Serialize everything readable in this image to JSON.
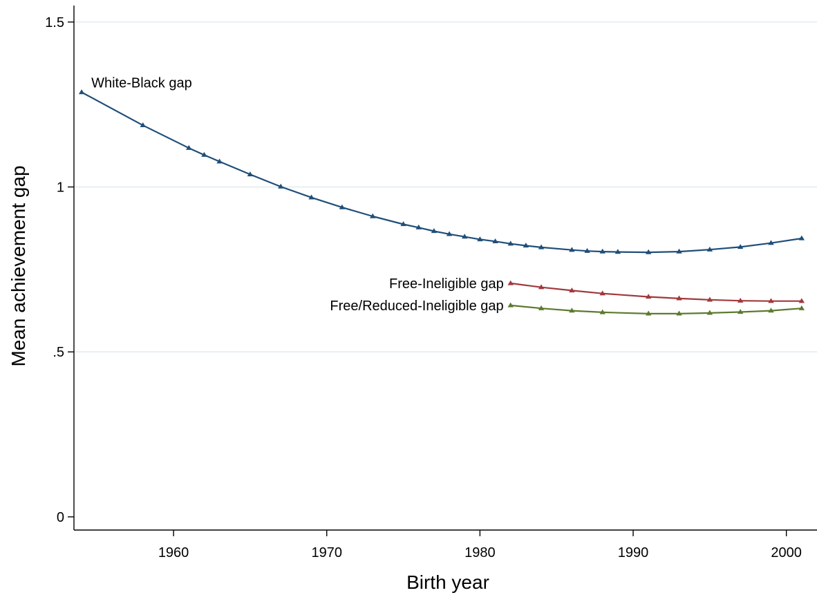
{
  "chart_data": {
    "type": "line",
    "title": "",
    "xlabel": "Birth year",
    "ylabel": "Mean achievement gap",
    "xlim": [
      1953.5,
      2002
    ],
    "ylim": [
      -0.04,
      1.55
    ],
    "xticks": [
      1960,
      1970,
      1980,
      1990,
      2000
    ],
    "xtick_labels": [
      "1960",
      "1970",
      "1980",
      "1990",
      "2000"
    ],
    "yticks": [
      0,
      0.5,
      1,
      1.5
    ],
    "ytick_labels": [
      "0",
      ".5",
      "1",
      "1.5"
    ],
    "grid": "horizontal",
    "legend": "none (series labeled directly on lines)",
    "series": [
      {
        "name": "White-Black gap",
        "color": "#1f4e79",
        "marker": "triangle",
        "label_position": "above-right of first point",
        "x": [
          1954,
          1958,
          1961,
          1962,
          1963,
          1965,
          1967,
          1969,
          1971,
          1973,
          1975,
          1976,
          1977,
          1978,
          1979,
          1980,
          1981,
          1982,
          1983,
          1984,
          1986,
          1987,
          1988,
          1989,
          1991,
          1993,
          1995,
          1997,
          1999,
          2001
        ],
        "y": [
          1.287,
          1.187,
          1.118,
          1.097,
          1.077,
          1.038,
          1.001,
          0.968,
          0.938,
          0.911,
          0.887,
          0.877,
          0.866,
          0.857,
          0.849,
          0.841,
          0.835,
          0.828,
          0.822,
          0.817,
          0.809,
          0.806,
          0.804,
          0.803,
          0.802,
          0.804,
          0.81,
          0.818,
          0.83,
          0.844
        ]
      },
      {
        "name": "Free-Ineligible gap",
        "color": "#a0393c",
        "marker": "triangle",
        "label_position": "left of first point",
        "x": [
          1982,
          1984,
          1986,
          1988,
          1991,
          1993,
          1995,
          1997,
          1999,
          2001
        ],
        "y": [
          0.708,
          0.696,
          0.686,
          0.677,
          0.667,
          0.662,
          0.658,
          0.655,
          0.654,
          0.654
        ]
      },
      {
        "name": "Free/Reduced-Ineligible gap",
        "color": "#5c7a2e",
        "marker": "triangle",
        "label_position": "left of first point",
        "x": [
          1982,
          1984,
          1986,
          1988,
          1991,
          1993,
          1995,
          1997,
          1999,
          2001
        ],
        "y": [
          0.641,
          0.632,
          0.625,
          0.62,
          0.616,
          0.616,
          0.618,
          0.621,
          0.625,
          0.632
        ]
      }
    ]
  }
}
